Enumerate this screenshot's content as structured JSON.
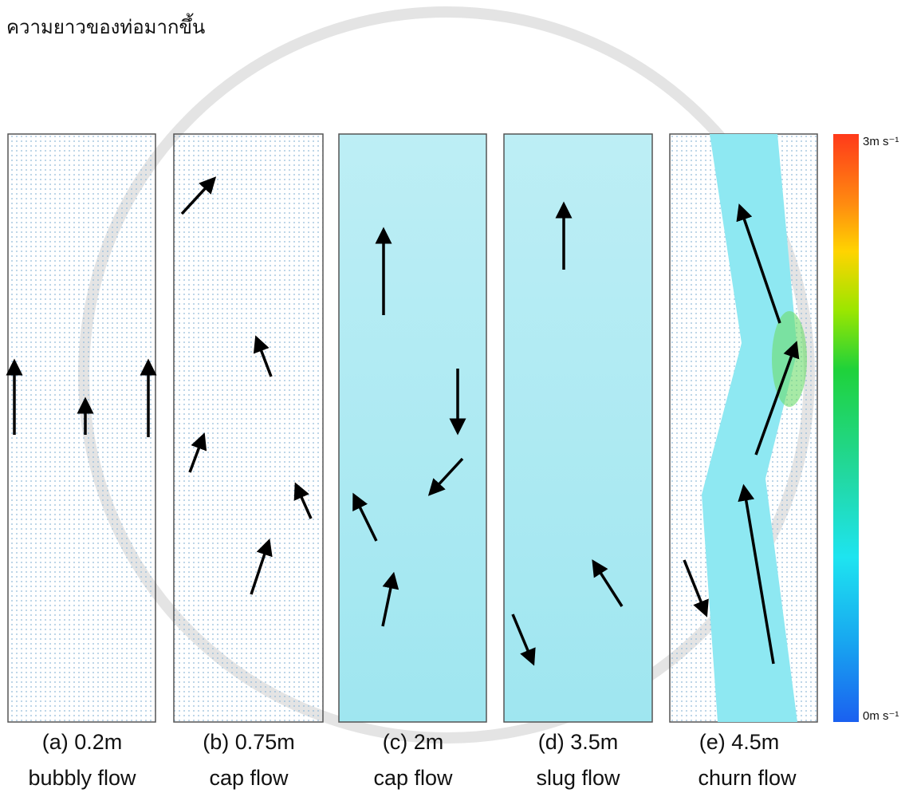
{
  "heading": "ความยาวของท่อมากขึ้น",
  "panels": [
    {
      "label": "(a) 0.2m",
      "caption": "bubbly flow"
    },
    {
      "label": "(b) 0.75m",
      "caption": "cap flow"
    },
    {
      "label": "(c) 2m",
      "caption": "cap flow"
    },
    {
      "label": "(d) 3.5m",
      "caption": "slug flow"
    },
    {
      "label": "(e) 4.5m",
      "caption": "churn flow"
    }
  ],
  "colorbar": {
    "max_label": "3m s⁻¹",
    "min_label": "0m s⁻¹"
  }
}
